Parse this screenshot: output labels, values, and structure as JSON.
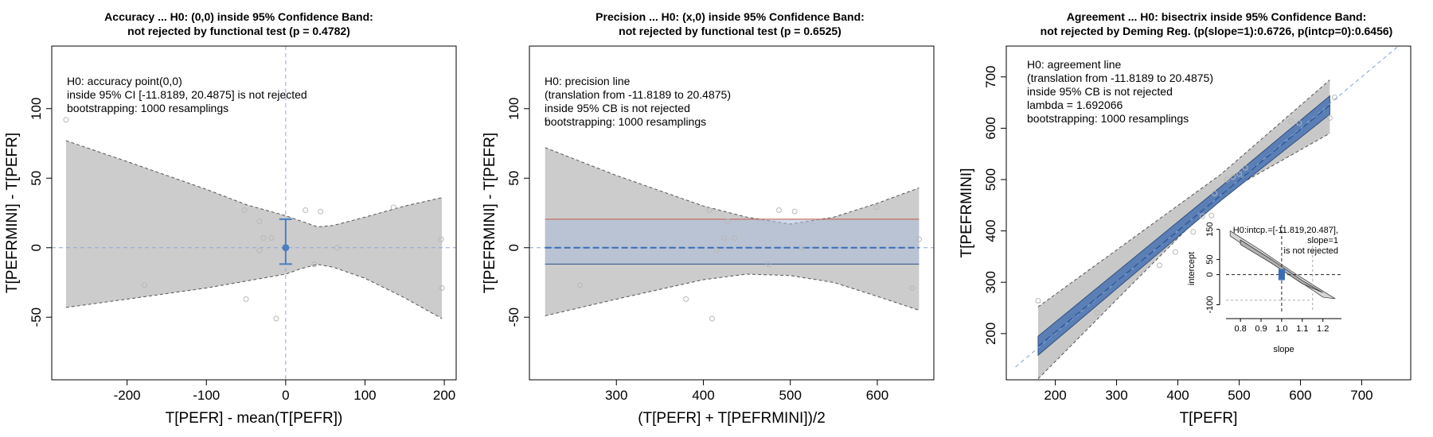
{
  "chart_data": [
    {
      "type": "scatter",
      "title_lines": [
        "Accuracy ... H0: (0,0) inside 95% Confidence Band:",
        "not rejected by functional test (p = 0.4782)"
      ],
      "xlabel": "T[PEFR] - mean(T[PEFR])",
      "ylabel": "T[PEFRMINI] - T[PEFR]",
      "xlim": [
        -295,
        215
      ],
      "ylim": [
        -95,
        145
      ],
      "xticks": [
        -200,
        -100,
        0,
        100,
        200
      ],
      "yticks": [
        -50,
        0,
        50,
        100
      ],
      "annotation_lines": [
        "H0: accuracy point(0,0)",
        "inside 95% CI [-11.8189, 20.4875] is not rejected",
        "bootstrapping: 1000 resamplings"
      ],
      "points": [
        [
          -277,
          92
        ],
        [
          -178,
          -27
        ],
        [
          -52,
          27
        ],
        [
          -50,
          -37
        ],
        [
          -33,
          19
        ],
        [
          -33,
          -2
        ],
        [
          -28,
          7
        ],
        [
          -18,
          7
        ],
        [
          -12,
          -51
        ],
        [
          25,
          27
        ],
        [
          36,
          -12
        ],
        [
          44,
          26
        ],
        [
          65,
          0
        ],
        [
          136,
          29
        ],
        [
          196,
          6
        ],
        [
          197,
          -29
        ]
      ],
      "band_x": [
        -277,
        -200,
        -100,
        -50,
        0,
        20,
        40,
        60,
        100,
        150,
        197
      ],
      "band_upper": [
        77,
        62,
        42,
        31,
        23,
        19,
        15,
        16,
        22,
        30,
        36
      ],
      "band_lower": [
        -43,
        -37,
        -29,
        -24,
        -19,
        -15,
        -12,
        -14,
        -22,
        -36,
        -51
      ],
      "ci_point": [
        0,
        0
      ],
      "ci_range": [
        -11.8189,
        20.4875
      ],
      "colors": {
        "band": "#cccccc",
        "ci": "#4a7fc1",
        "refline": "#8fa7d6",
        "points": "#b8b8b8"
      }
    },
    {
      "type": "scatter",
      "title_lines": [
        "Precision ... H0: (x,0) inside 95% Confidence Band:",
        "not rejected by functional test (p = 0.6525)"
      ],
      "xlabel": "(T[PEFR] + T[PEFRMINI])/2",
      "ylabel": "T[PEFRMINI] - T[PEFR]",
      "xlim": [
        200,
        665
      ],
      "ylim": [
        -95,
        145
      ],
      "xticks": [
        300,
        400,
        500,
        600
      ],
      "yticks": [
        -50,
        0,
        50,
        100
      ],
      "annotation_lines": [
        "H0: precision line",
        "(translation from -11.8189 to 20.4875)",
        "inside 95% CB is not rejected",
        "bootstrapping: 1000 resamplings"
      ],
      "points": [
        [
          220,
          92
        ],
        [
          258,
          -27
        ],
        [
          380,
          -37
        ],
        [
          407,
          27
        ],
        [
          410,
          -51
        ],
        [
          415,
          -2
        ],
        [
          424,
          7
        ],
        [
          428,
          19
        ],
        [
          436,
          7
        ],
        [
          475,
          -12
        ],
        [
          487,
          27
        ],
        [
          505,
          26
        ],
        [
          513,
          0
        ],
        [
          599,
          29
        ],
        [
          640,
          -29
        ],
        [
          648,
          6
        ]
      ],
      "band_x": [
        218,
        300,
        400,
        450,
        500,
        550,
        600,
        648
      ],
      "band_upper": [
        72,
        52,
        30,
        22,
        17,
        22,
        32,
        43
      ],
      "band_lower": [
        -49,
        -37,
        -23,
        -19,
        -20,
        -25,
        -35,
        -45
      ],
      "translation": [
        -11.8189,
        20.4875
      ],
      "colors": {
        "band": "#cccccc",
        "shade": "#a9bcd8",
        "upper": "#c45a4a",
        "lower": "#2f4f8a",
        "mid": "#3a6db5",
        "refline": "#8fa7d6",
        "points": "#b8b8b8"
      }
    },
    {
      "type": "scatter",
      "title_lines": [
        "Agreement ... H0: bisectrix inside 95% Confidence Band:",
        "not rejected by Deming Reg. (p(slope=1):0.6726, p(intcp=0):0.6456)"
      ],
      "xlabel": "T[PEFR]",
      "ylabel": "T[PEFRMINI]",
      "xlim": [
        120,
        780
      ],
      "ylim": [
        110,
        760
      ],
      "xticks": [
        200,
        300,
        400,
        500,
        600,
        700
      ],
      "yticks": [
        200,
        300,
        400,
        500,
        600,
        700
      ],
      "annotation_lines": [
        "H0: agreement line",
        "(translation from -11.8189 to 20.4875)",
        "inside 95% CB is not rejected",
        "lambda = 1.692066",
        "bootstrapping: 1000 resamplings"
      ],
      "points": [
        [
          172,
          264
        ],
        [
          268,
          241
        ],
        [
          370,
          333
        ],
        [
          396,
          359
        ],
        [
          425,
          398
        ],
        [
          440,
          429
        ],
        [
          455,
          430
        ],
        [
          460,
          473
        ],
        [
          480,
          500
        ],
        [
          490,
          505
        ],
        [
          500,
          511
        ],
        [
          510,
          523
        ],
        [
          585,
          614
        ],
        [
          598,
          610
        ],
        [
          648,
          620
        ],
        [
          656,
          660
        ]
      ],
      "regression": {
        "x": [
          172,
          648
        ],
        "y": [
          175,
          645
        ]
      },
      "outer_band": {
        "x": [
          172,
          470,
          648
        ],
        "upper": [
          252,
          510,
          694
        ],
        "lower": [
          112,
          470,
          590
        ]
      },
      "inner_band": {
        "x": [
          172,
          470,
          648
        ],
        "upper": [
          195,
          486,
          663
        ],
        "lower": [
          158,
          459,
          627
        ]
      },
      "bisectrix": {
        "x": [
          135,
          760
        ],
        "y": [
          135,
          760
        ]
      },
      "inset": {
        "xlabel": "slope",
        "ylabel": "intercept",
        "xlim": [
          0.73,
          1.29
        ],
        "ylim": [
          -125,
          165
        ],
        "xticks": [
          0.8,
          0.9,
          1.0,
          1.1,
          1.2
        ],
        "xtick_labels": [
          "0.8",
          "0.9",
          "1.0",
          "1.1",
          "1.2"
        ],
        "yticks": [
          -100,
          0,
          50,
          150
        ],
        "text_lines": [
          "H0:intcp.=[-11.819,20.487],",
          "slope=1",
          "is not rejected"
        ],
        "ellipse_outer": [
          [
            0.75,
            145
          ],
          [
            0.9,
            80
          ],
          [
            1.05,
            10
          ],
          [
            1.2,
            -55
          ],
          [
            1.26,
            -80
          ],
          [
            1.2,
            -75
          ],
          [
            1.05,
            -5
          ],
          [
            0.9,
            60
          ],
          [
            0.75,
            128
          ]
        ],
        "ellipse_inner": [
          [
            0.8,
            115
          ],
          [
            0.95,
            50
          ],
          [
            1.1,
            -20
          ],
          [
            1.2,
            -60
          ],
          [
            1.1,
            -30
          ],
          [
            0.95,
            38
          ],
          [
            0.8,
            100
          ]
        ],
        "estimate": [
          1.0,
          0
        ],
        "slope_ci": [
          0.86,
          1.15
        ]
      },
      "colors": {
        "outer_band": "#c8c8c8",
        "inner_band": "#5b7fb5",
        "regression": "#2e5a9a",
        "bisectrix": "#7fa4d8",
        "points": "#b8b8b8"
      }
    }
  ]
}
